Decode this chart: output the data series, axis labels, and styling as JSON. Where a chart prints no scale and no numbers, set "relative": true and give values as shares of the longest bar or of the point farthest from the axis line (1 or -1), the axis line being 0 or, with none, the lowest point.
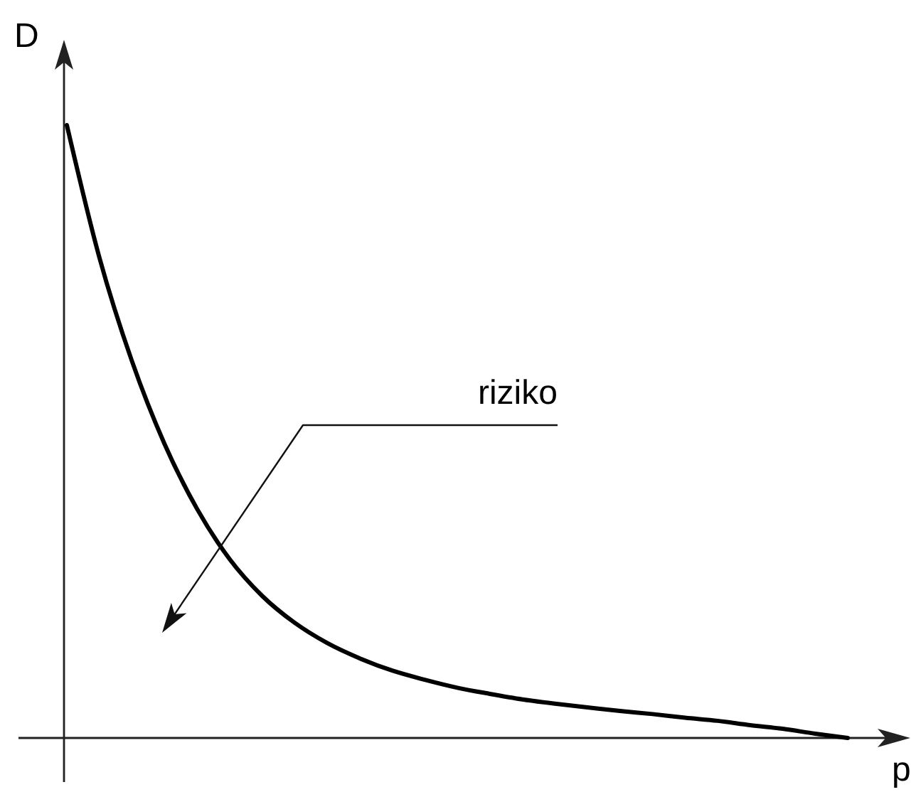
{
  "chart_data": {
    "type": "line",
    "xlabel": "p",
    "ylabel": "D",
    "annotations": [
      "riziko"
    ],
    "relative": true,
    "color": "#000000",
    "categories": [
      null,
      null,
      null,
      null,
      null,
      null,
      null,
      null,
      null,
      null,
      null,
      null,
      null,
      null,
      null,
      null,
      null,
      null,
      null,
      null,
      null,
      null,
      null,
      null,
      null
    ],
    "values": [
      1,
      0.784,
      0.615,
      0.48,
      0.374,
      0.292,
      0.232,
      0.188,
      0.155,
      0.13,
      0.11,
      0.095,
      0.082,
      0.072,
      0.063,
      0.056,
      0.05,
      0.044,
      0.039,
      0.033,
      0.028,
      0.021,
      0.015,
      0.007,
      0
    ]
  }
}
